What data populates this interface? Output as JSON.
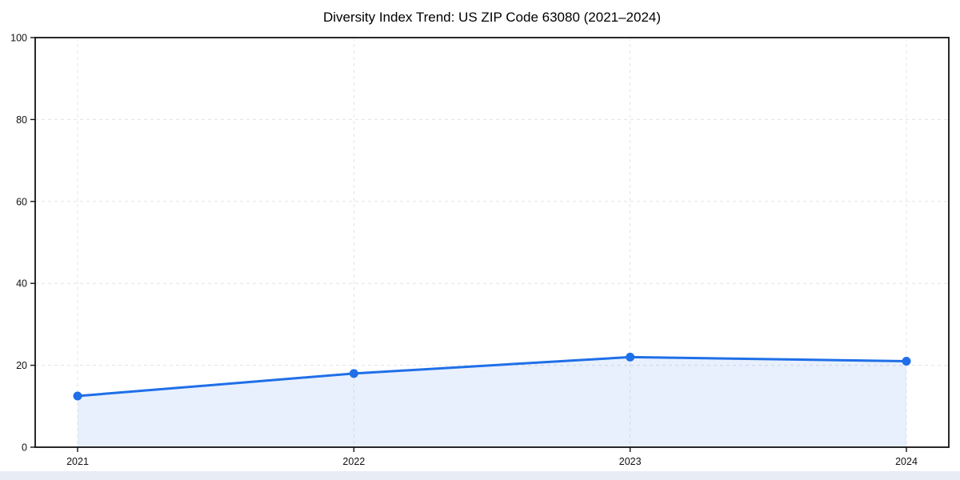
{
  "page": {
    "background": "#ffffff",
    "bottom_strip_color": "#e7ecf5"
  },
  "chart_data": {
    "type": "area",
    "title": "Diversity Index Trend: US ZIP Code 63080 (2021–2024)",
    "categories": [
      "2021",
      "2022",
      "2023",
      "2024"
    ],
    "series": [
      {
        "name": "Diversity Index",
        "values": [
          12.5,
          18,
          22,
          21
        ]
      }
    ],
    "xlabel": "",
    "ylabel": "",
    "ylim": [
      0,
      100
    ],
    "yticks": [
      0,
      20,
      40,
      60,
      80,
      100
    ],
    "grid": "dashed-both-axes",
    "legend": "none",
    "markers": "filled-circle",
    "colors": {
      "line": "#1f6fe8",
      "marker": "#1f6fe8",
      "fill": "rgba(31, 111, 232, 0.10)",
      "grid": "#e4e4e4",
      "spine": "#111111",
      "tick_label": "#111111",
      "title": "#000000"
    }
  }
}
